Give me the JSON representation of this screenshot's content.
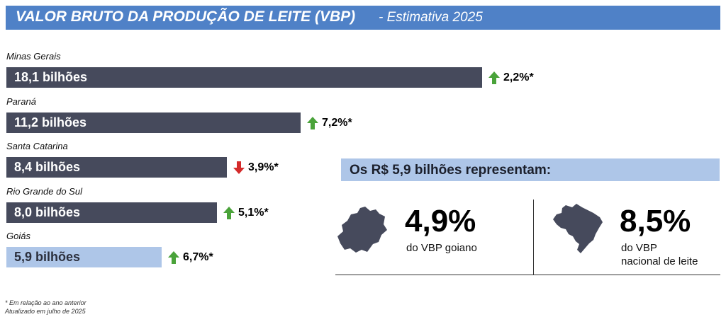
{
  "header": {
    "title": "VALOR BRUTO DA PRODUÇÃO DE LEITE (VBP)",
    "subtitle": "- Estimativa 2025"
  },
  "chart_data": {
    "type": "bar",
    "orientation": "horizontal",
    "categories": [
      "Minas Gerais",
      "Paraná",
      "Santa Catarina",
      "Rio Grande do Sul",
      "Goiás"
    ],
    "values": [
      18.1,
      11.2,
      8.4,
      8.0,
      5.9
    ],
    "value_labels": [
      "18,1 bilhões",
      "11,2 bilhões",
      "8,4 bilhões",
      "8,0 bilhões",
      "5,9 bilhões"
    ],
    "changes": [
      {
        "label": "2,2%*",
        "direction": "up"
      },
      {
        "label": "7,2%*",
        "direction": "up"
      },
      {
        "label": "3,9%*",
        "direction": "down"
      },
      {
        "label": "5,1%*",
        "direction": "up"
      },
      {
        "label": "6,7%*",
        "direction": "up"
      }
    ],
    "highlight": "Goiás",
    "colors": {
      "bar": "#464a5c",
      "highlight": "#aec6e8",
      "up": "#4aa33a",
      "down": "#d42b2b"
    },
    "grid": false
  },
  "representation": {
    "title": "Os R$ 5,9 bilhões representam:",
    "stats": [
      {
        "icon": "goias-map-icon",
        "value": "4,9%",
        "caption_lines": [
          "do VBP goiano"
        ]
      },
      {
        "icon": "brazil-map-icon",
        "value": "8,5%",
        "caption_lines": [
          "do VBP",
          "nacional de leite"
        ]
      }
    ],
    "map_color": "#464a5c"
  },
  "footnotes": {
    "line1": "* Em relação ao ano anterior",
    "line2": "Atualizado em julho de 2025"
  }
}
